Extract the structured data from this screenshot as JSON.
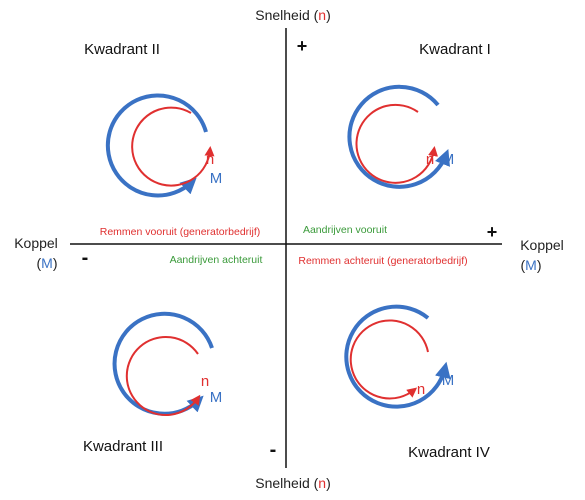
{
  "axes": {
    "top_label": "Snelheid (",
    "bottom_label": "Snelheid (",
    "left_label": "Koppel",
    "right_label": "Koppel",
    "speed_symbol": "n",
    "torque_symbol": "M",
    "open_paren": "(",
    "close_paren": ")",
    "plus_top": "+",
    "plus_right": "+",
    "minus_left": "-",
    "minus_bottom": "-"
  },
  "quadrants": {
    "q1": {
      "title": "Kwadrant I"
    },
    "q2": {
      "title": "Kwadrant II"
    },
    "q3": {
      "title": "Kwadrant III"
    },
    "q4": {
      "title": "Kwadrant IV"
    }
  },
  "modes": {
    "forward_braking": "Remmen vooruit (generatorbedrijf)",
    "forward_driving": "Aandrijven vooruit",
    "reverse_driving": "Aandrijven achteruit",
    "reverse_braking": "Remmen achteruit (generatorbedrijf)"
  },
  "colors": {
    "speed": "#e03030",
    "torque": "#3a72c4",
    "driving": "#3a9a3a",
    "braking": "#e03030",
    "axis": "#111111"
  }
}
